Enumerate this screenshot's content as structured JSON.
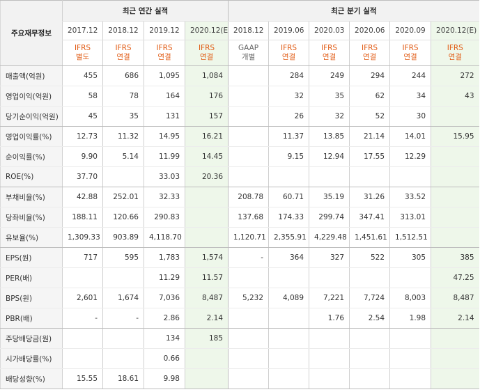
{
  "table": {
    "label_header": "주요재무정보",
    "group_annual": "최근 연간 실적",
    "group_quarter": "최근 분기 실적",
    "columns": [
      {
        "period": "2017.12",
        "std": "IFRS",
        "type": "별도",
        "std_color": "accent"
      },
      {
        "period": "2018.12",
        "std": "IFRS",
        "type": "연결",
        "std_color": "accent"
      },
      {
        "period": "2019.12",
        "std": "IFRS",
        "type": "연결",
        "std_color": "accent"
      },
      {
        "period": "2020.12(E)",
        "std": "IFRS",
        "type": "연결",
        "std_color": "accent"
      },
      {
        "period": "2018.12",
        "std": "GAAP",
        "type": "개별",
        "std_color": "gray"
      },
      {
        "period": "2019.06",
        "std": "IFRS",
        "type": "연결",
        "std_color": "accent"
      },
      {
        "period": "2020.03",
        "std": "IFRS",
        "type": "연결",
        "std_color": "accent"
      },
      {
        "period": "2020.06",
        "std": "IFRS",
        "type": "연결",
        "std_color": "accent"
      },
      {
        "period": "2020.09",
        "std": "IFRS",
        "type": "연결",
        "std_color": "accent"
      },
      {
        "period": "2020.12(E)",
        "std": "IFRS",
        "type": "연결",
        "std_color": "accent"
      }
    ],
    "rows": [
      {
        "label": "매출액(억원)",
        "values": [
          "455",
          "686",
          "1,095",
          "1,084",
          "",
          "284",
          "249",
          "294",
          "244",
          "272"
        ]
      },
      {
        "label": "영업이익(억원)",
        "values": [
          "58",
          "78",
          "164",
          "176",
          "",
          "32",
          "35",
          "62",
          "34",
          "43"
        ]
      },
      {
        "label": "당기순이익(억원)",
        "values": [
          "45",
          "35",
          "131",
          "157",
          "",
          "26",
          "32",
          "52",
          "30",
          ""
        ],
        "group_end": true
      },
      {
        "label": "영업이익률(%)",
        "values": [
          "12.73",
          "11.32",
          "14.95",
          "16.21",
          "",
          "11.37",
          "13.85",
          "21.14",
          "14.01",
          "15.95"
        ]
      },
      {
        "label": "순이익률(%)",
        "values": [
          "9.90",
          "5.14",
          "11.99",
          "14.45",
          "",
          "9.15",
          "12.94",
          "17.55",
          "12.29",
          ""
        ]
      },
      {
        "label": "ROE(%)",
        "values": [
          "37.70",
          "",
          "33.03",
          "20.36",
          "",
          "",
          "",
          "",
          "",
          ""
        ],
        "group_end": true
      },
      {
        "label": "부채비율(%)",
        "values": [
          "42.88",
          "252.01",
          "32.33",
          "",
          "208.78",
          "60.71",
          "35.19",
          "31.26",
          "33.52",
          ""
        ]
      },
      {
        "label": "당좌비율(%)",
        "values": [
          "188.11",
          "120.66",
          "290.83",
          "",
          "137.68",
          "174.33",
          "299.74",
          "347.41",
          "313.01",
          ""
        ]
      },
      {
        "label": "유보율(%)",
        "values": [
          "1,309.33",
          "903.89",
          "4,118.70",
          "",
          "1,120.71",
          "2,355.91",
          "4,229.48",
          "1,451.61",
          "1,512.51",
          ""
        ],
        "group_end": true
      },
      {
        "label": "EPS(원)",
        "values": [
          "717",
          "595",
          "1,783",
          "1,574",
          "-",
          "364",
          "327",
          "522",
          "305",
          "385"
        ]
      },
      {
        "label": "PER(배)",
        "values": [
          "",
          "",
          "11.29",
          "11.57",
          "",
          "",
          "",
          "",
          "",
          "47.25"
        ]
      },
      {
        "label": "BPS(원)",
        "values": [
          "2,601",
          "1,674",
          "7,036",
          "8,487",
          "5,232",
          "4,089",
          "7,221",
          "7,724",
          "8,003",
          "8,487"
        ]
      },
      {
        "label": "PBR(배)",
        "values": [
          "-",
          "-",
          "2.86",
          "2.14",
          "",
          "",
          "1.76",
          "2.54",
          "1.98",
          "2.14"
        ],
        "group_end": true
      },
      {
        "label": "주당배당금(원)",
        "values": [
          "",
          "",
          "134",
          "185",
          "",
          "",
          "",
          "",
          "",
          ""
        ]
      },
      {
        "label": "시가배당률(%)",
        "values": [
          "",
          "",
          "0.66",
          "",
          "",
          "",
          "",
          "",
          "",
          ""
        ]
      },
      {
        "label": "배당성향(%)",
        "values": [
          "15.55",
          "18.61",
          "9.98",
          "",
          "",
          "",
          "",
          "",
          "",
          ""
        ]
      }
    ]
  },
  "colors": {
    "accent": "#e15b14",
    "gray": "#666666",
    "estimate_bg": "#eef7ea"
  }
}
